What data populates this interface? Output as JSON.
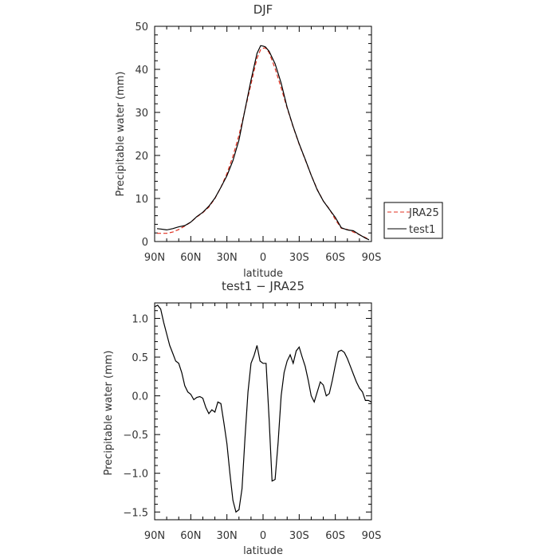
{
  "chart_data": [
    {
      "type": "line",
      "title": "DJF",
      "xlabel": "latitude",
      "ylabel": "Precipitable water (mm)",
      "xlim": [
        90,
        -90
      ],
      "ylim": [
        0,
        50
      ],
      "x_ticks": [
        90,
        60,
        30,
        0,
        -30,
        -60,
        -90
      ],
      "x_tick_labels": [
        "90N",
        "60N",
        "30N",
        "0",
        "30S",
        "60S",
        "90S"
      ],
      "y_ticks": [
        0,
        10,
        20,
        30,
        40,
        50
      ],
      "y_tick_labels": [
        "0",
        "10",
        "20",
        "30",
        "40",
        "50"
      ],
      "legend": "right",
      "series": [
        {
          "name": "JRA25",
          "color": "#e03020",
          "dash": "dashed",
          "x": [
            88,
            85,
            80,
            75,
            70,
            65,
            60,
            55,
            50,
            45,
            40,
            35,
            30,
            25,
            20,
            15,
            10,
            5,
            2,
            0,
            -2,
            -5,
            -10,
            -15,
            -20,
            -25,
            -30,
            -35,
            -40,
            -45,
            -50,
            -55,
            -60,
            -65,
            -70,
            -75,
            -80,
            -85,
            -88
          ],
          "values": [
            1.9,
            1.9,
            1.9,
            2.2,
            2.8,
            3.6,
            4.5,
            5.7,
            6.7,
            8.0,
            10.0,
            12.6,
            15.8,
            19.8,
            24.7,
            30.5,
            36.6,
            42.6,
            44.6,
            44.9,
            45.0,
            43.9,
            40.2,
            35.7,
            31.0,
            26.6,
            22.6,
            19.0,
            15.4,
            12.1,
            9.4,
            7.6,
            5.1,
            3.1,
            2.8,
            2.2,
            1.6,
            0.9,
            0.5
          ]
        },
        {
          "name": "test1",
          "color": "#000000",
          "dash": "solid",
          "x": [
            88,
            85,
            80,
            75,
            70,
            65,
            60,
            55,
            50,
            45,
            40,
            35,
            30,
            25,
            20,
            15,
            10,
            5,
            2,
            0,
            -2,
            -5,
            -10,
            -15,
            -20,
            -25,
            -30,
            -35,
            -40,
            -45,
            -50,
            -55,
            -60,
            -65,
            -70,
            -75,
            -80,
            -85,
            -88
          ],
          "values": [
            3.0,
            2.9,
            2.7,
            3.0,
            3.4,
            3.7,
            4.5,
            5.8,
            6.8,
            8.2,
            10.1,
            12.6,
            15.3,
            18.8,
            23.6,
            30.6,
            37.5,
            43.7,
            45.5,
            45.4,
            45.2,
            44.2,
            41.3,
            36.8,
            31.2,
            26.7,
            22.7,
            19.1,
            15.4,
            12.0,
            9.4,
            7.5,
            5.6,
            3.2,
            2.7,
            2.5,
            1.6,
            0.8,
            0.4
          ]
        }
      ]
    },
    {
      "type": "line",
      "title": "test1 − JRA25",
      "xlabel": "latitude",
      "ylabel": "Precipitable water (mm)",
      "xlim": [
        90,
        -90
      ],
      "ylim": [
        -1.6,
        1.2
      ],
      "x_ticks": [
        90,
        60,
        30,
        0,
        -30,
        -60,
        -90
      ],
      "x_tick_labels": [
        "90N",
        "60N",
        "30N",
        "0",
        "30S",
        "60S",
        "90S"
      ],
      "y_ticks": [
        1.0,
        0.5,
        0.0,
        -0.5,
        -1.0,
        -1.5
      ],
      "y_tick_labels": [
        "1.0",
        "0.5",
        "0.0",
        "−0.5",
        "−1.0",
        "−1.5"
      ],
      "series": [
        {
          "color": "#000000",
          "dash": "solid",
          "x": [
            90,
            87.5,
            85,
            82.5,
            80,
            77.5,
            75,
            72.5,
            70,
            67.5,
            65,
            62.5,
            60,
            57.5,
            55,
            52.5,
            50,
            47.5,
            45,
            42.5,
            40,
            37.5,
            35,
            32.5,
            30,
            27.5,
            25,
            22.5,
            20,
            17.5,
            15,
            12.5,
            10,
            7.5,
            5,
            2.5,
            0,
            -2.5,
            -5,
            -7.5,
            -10,
            -12.5,
            -15,
            -17.5,
            -20,
            -22.5,
            -25,
            -27.5,
            -30,
            -32.5,
            -35,
            -37.5,
            -40,
            -42.5,
            -45,
            -47.5,
            -50,
            -52.5,
            -55,
            -57.5,
            -60,
            -62.5,
            -65,
            -67.5,
            -70,
            -72.5,
            -75,
            -77.5,
            -80,
            -82.5,
            -85,
            -87.5,
            -90
          ],
          "values": [
            1.15,
            1.17,
            1.12,
            0.95,
            0.8,
            0.65,
            0.55,
            0.45,
            0.42,
            0.3,
            0.13,
            0.05,
            0.02,
            -0.05,
            -0.02,
            -0.01,
            -0.03,
            -0.15,
            -0.23,
            -0.18,
            -0.21,
            -0.08,
            -0.1,
            -0.35,
            -0.62,
            -1.0,
            -1.35,
            -1.5,
            -1.47,
            -1.2,
            -0.55,
            0.05,
            0.42,
            0.52,
            0.65,
            0.45,
            0.42,
            0.42,
            -0.3,
            -1.1,
            -1.08,
            -0.6,
            0.0,
            0.3,
            0.45,
            0.53,
            0.42,
            0.58,
            0.63,
            0.5,
            0.38,
            0.2,
            0.0,
            -0.08,
            0.05,
            0.18,
            0.14,
            0.0,
            0.03,
            0.2,
            0.4,
            0.57,
            0.59,
            0.56,
            0.48,
            0.38,
            0.28,
            0.18,
            0.1,
            0.05,
            -0.06,
            -0.06,
            -0.08
          ]
        }
      ]
    }
  ]
}
